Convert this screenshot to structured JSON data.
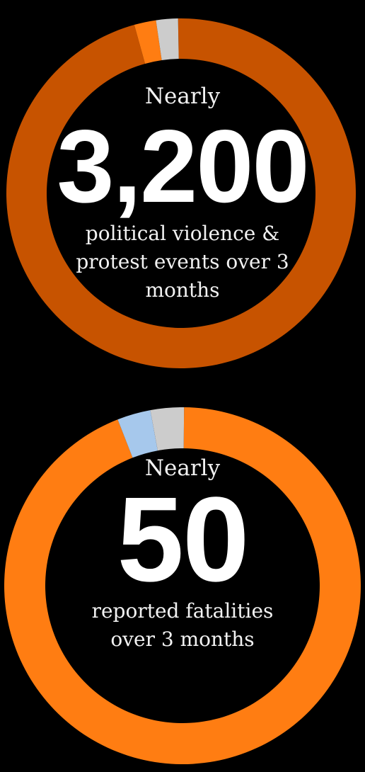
{
  "chart_data": [
    {
      "type": "pie",
      "values": [
        95,
        2,
        2
      ],
      "colors": [
        "#c75300",
        "#ff7d12",
        "#cccccc"
      ],
      "prefix": "Nearly",
      "number": "3,200",
      "caption": "political violence & protest events over 3 months"
    },
    {
      "type": "pie",
      "values": [
        93,
        3,
        3
      ],
      "colors": [
        "#ff7d12",
        "#a6c8ec",
        "#cccccc"
      ],
      "prefix": "Nearly",
      "number": "50",
      "caption": "reported fatalities over 3 months"
    }
  ]
}
